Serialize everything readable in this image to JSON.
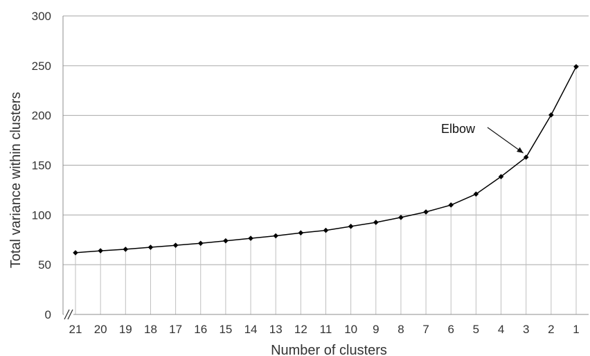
{
  "chart_data": {
    "type": "line",
    "xlabel": "Number of clusters",
    "ylabel": "Total variance within clusters",
    "x": [
      "21",
      "20",
      "19",
      "18",
      "17",
      "16",
      "15",
      "14",
      "13",
      "12",
      "11",
      "10",
      "9",
      "8",
      "7",
      "6",
      "5",
      "4",
      "3",
      "2",
      "1"
    ],
    "series": [
      {
        "values": [
          62,
          64,
          65.5,
          67.5,
          69.5,
          71.5,
          74,
          76.5,
          79,
          82,
          84.5,
          88.5,
          92.5,
          97.5,
          103,
          110,
          121,
          138.5,
          158,
          200.5,
          249
        ]
      }
    ],
    "ylim": [
      0,
      300
    ],
    "yticks": [
      0,
      50,
      100,
      150,
      200,
      250,
      300
    ],
    "grid": {
      "horizontal": true,
      "vertical_drop_lines": true
    },
    "axis_break_marker": "//",
    "annotations": [
      {
        "text": "Elbow",
        "points_to_x": "3"
      }
    ],
    "colors": {
      "line": "#000000",
      "gridline": "#a6a6a6",
      "dropline": "#bfbfbf"
    }
  }
}
